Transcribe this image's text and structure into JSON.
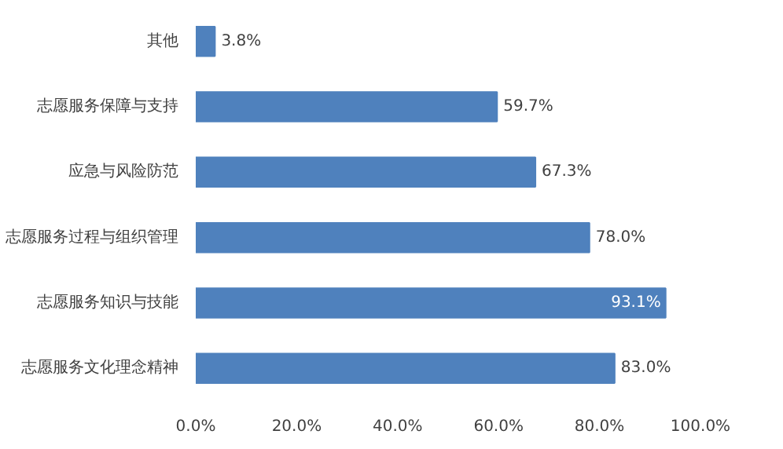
{
  "chart_data": {
    "type": "bar",
    "orientation": "horizontal",
    "categories": [
      "其他",
      "志愿服务保障与支持",
      "应急与风险防范",
      "志愿服务过程与组织管理",
      "志愿服务知识与技能",
      "志愿服务文化理念精神"
    ],
    "values": [
      3.8,
      59.7,
      67.3,
      78.0,
      93.1,
      83.0
    ],
    "value_labels": [
      "3.8%",
      "59.7%",
      "67.3%",
      "78.0%",
      "93.1%",
      "83.0%"
    ],
    "color": "#4f81bd",
    "xlim": [
      0,
      100
    ],
    "xticks": [
      {
        "value": 0,
        "label": "0.0%"
      },
      {
        "value": 20,
        "label": "20.0%"
      },
      {
        "value": 40,
        "label": "40.0%"
      },
      {
        "value": 60,
        "label": "60.0%"
      },
      {
        "value": 80,
        "label": "80.0%"
      },
      {
        "value": 100,
        "label": "100.0%"
      }
    ],
    "grid": false
  }
}
